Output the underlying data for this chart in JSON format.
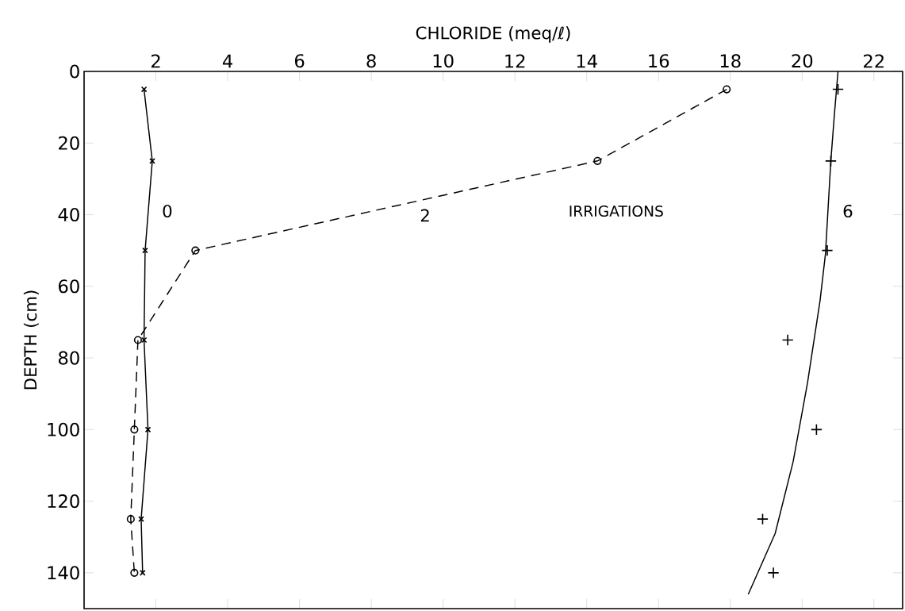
{
  "chart_data": {
    "type": "line",
    "xlabel": "CHLORIDE (meq/ℓ)",
    "ylabel": "DEPTH (cm)",
    "xlim": [
      0,
      22.8
    ],
    "ylim": [
      150,
      0
    ],
    "xticks": [
      2,
      4,
      6,
      8,
      10,
      12,
      14,
      16,
      18,
      20,
      22
    ],
    "yticks": [
      0,
      20,
      40,
      60,
      80,
      100,
      120,
      140
    ],
    "grid": false,
    "series": [
      {
        "name": "0",
        "color": "#000000",
        "marker": "cross",
        "line_style": "solid",
        "x": [
          1.67,
          1.9,
          1.7,
          1.67,
          1.78,
          1.59,
          1.63
        ],
        "values": [
          5,
          25,
          50,
          75,
          100,
          125,
          140
        ]
      },
      {
        "name": "2",
        "color": "#000000",
        "marker": "circle",
        "line_style": "dashed",
        "x": [
          17.9,
          14.3,
          3.1,
          1.5,
          1.4,
          1.3,
          1.4
        ],
        "values": [
          5,
          25,
          50,
          75,
          100,
          125,
          140
        ]
      },
      {
        "color": "#000000",
        "marker": "none",
        "line_style": "solid",
        "x": [
          21.0,
          20.9,
          20.8,
          20.65,
          20.5,
          20.15,
          19.75,
          19.25,
          18.5
        ],
        "values": [
          0,
          12,
          25,
          51,
          64,
          87,
          109,
          129,
          146
        ]
      },
      {
        "name": "6",
        "type": "scatter",
        "color": "#000000",
        "marker": "plus",
        "x": [
          21.0,
          20.8,
          20.7,
          19.6,
          20.4,
          18.9,
          19.2
        ],
        "values": [
          5,
          25,
          50,
          75,
          100,
          125,
          140
        ]
      }
    ],
    "annotations": [
      "IRRIGATIONS"
    ]
  }
}
